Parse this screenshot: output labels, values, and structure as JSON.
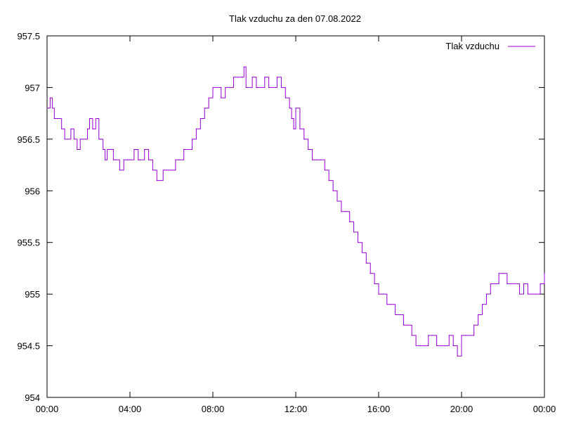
{
  "chart_data": {
    "type": "line",
    "title": "Tlak vzduchu za den 07.08.2022",
    "xlabel": "",
    "ylabel": "",
    "xlim": [
      0,
      24
    ],
    "ylim": [
      954,
      957.5
    ],
    "grid": false,
    "legend_position": "top-right",
    "x_ticks": [
      "00:00",
      "04:00",
      "08:00",
      "12:00",
      "16:00",
      "20:00",
      "00:00"
    ],
    "y_ticks": [
      "954",
      "954.5",
      "955",
      "955.5",
      "956",
      "956.5",
      "957",
      "957.5"
    ],
    "x_tick_values": [
      0,
      4,
      8,
      12,
      16,
      20,
      24
    ],
    "y_tick_values": [
      954,
      954.5,
      955,
      955.5,
      956,
      956.5,
      957,
      957.5
    ],
    "series": [
      {
        "name": "Tlak vzduchu",
        "color": "#9400d3",
        "x": [
          0.0,
          0.15,
          0.25,
          0.35,
          0.45,
          0.55,
          0.7,
          0.85,
          1.0,
          1.15,
          1.3,
          1.45,
          1.6,
          1.75,
          1.85,
          1.95,
          2.05,
          2.2,
          2.35,
          2.5,
          2.6,
          2.7,
          2.8,
          2.9,
          3.0,
          3.2,
          3.3,
          3.5,
          3.7,
          3.9,
          4.0,
          4.2,
          4.4,
          4.5,
          4.7,
          4.9,
          5.1,
          5.3,
          5.45,
          5.6,
          5.8,
          6.0,
          6.2,
          6.4,
          6.6,
          6.8,
          7.0,
          7.2,
          7.4,
          7.6,
          7.8,
          8.0,
          8.2,
          8.4,
          8.6,
          8.8,
          9.0,
          9.2,
          9.4,
          9.5,
          9.6,
          9.7,
          9.9,
          10.1,
          10.3,
          10.5,
          10.7,
          10.9,
          11.1,
          11.3,
          11.5,
          11.7,
          11.8,
          11.9,
          12.0,
          12.2,
          12.4,
          12.6,
          12.8,
          13.0,
          13.2,
          13.4,
          13.6,
          13.8,
          14.0,
          14.2,
          14.4,
          14.6,
          14.8,
          15.0,
          15.2,
          15.4,
          15.6,
          15.8,
          16.0,
          16.2,
          16.4,
          16.6,
          16.8,
          17.0,
          17.2,
          17.4,
          17.6,
          17.8,
          18.0,
          18.2,
          18.4,
          18.6,
          18.8,
          19.0,
          19.2,
          19.4,
          19.6,
          19.8,
          20.0,
          20.2,
          20.4,
          20.6,
          20.8,
          21.0,
          21.2,
          21.4,
          21.6,
          21.8,
          22.0,
          22.2,
          22.4,
          22.6,
          22.8,
          23.0,
          23.2,
          23.4,
          23.6,
          23.8,
          24.0
        ],
        "values": [
          956.8,
          956.9,
          956.8,
          956.7,
          956.7,
          956.7,
          956.6,
          956.5,
          956.5,
          956.6,
          956.5,
          956.4,
          956.5,
          956.5,
          956.5,
          956.6,
          956.7,
          956.6,
          956.7,
          956.5,
          956.5,
          956.4,
          956.3,
          956.4,
          956.4,
          956.3,
          956.3,
          956.2,
          956.3,
          956.3,
          956.3,
          956.4,
          956.3,
          956.3,
          956.4,
          956.3,
          956.2,
          956.1,
          956.1,
          956.2,
          956.2,
          956.2,
          956.3,
          956.3,
          956.4,
          956.4,
          956.5,
          956.6,
          956.7,
          956.8,
          956.9,
          957.0,
          957.0,
          956.9,
          957.0,
          957.0,
          957.1,
          957.1,
          957.1,
          957.2,
          957.0,
          957.0,
          957.1,
          957.0,
          957.0,
          957.1,
          957.0,
          957.0,
          957.1,
          957.0,
          956.9,
          956.8,
          956.7,
          956.6,
          956.8,
          956.6,
          956.5,
          956.4,
          956.3,
          956.3,
          956.3,
          956.2,
          956.1,
          956.0,
          955.9,
          955.8,
          955.8,
          955.7,
          955.6,
          955.5,
          955.4,
          955.3,
          955.2,
          955.1,
          955.0,
          955.0,
          954.9,
          954.9,
          954.8,
          954.8,
          954.7,
          954.7,
          954.6,
          954.5,
          954.5,
          954.5,
          954.6,
          954.6,
          954.5,
          954.5,
          954.5,
          954.6,
          954.5,
          954.4,
          954.6,
          954.6,
          954.6,
          954.7,
          954.8,
          954.9,
          955.0,
          955.1,
          955.1,
          955.2,
          955.2,
          955.1,
          955.1,
          955.1,
          955.0,
          955.1,
          955.0,
          955.0,
          955.0,
          955.1,
          955.2
        ]
      }
    ]
  }
}
